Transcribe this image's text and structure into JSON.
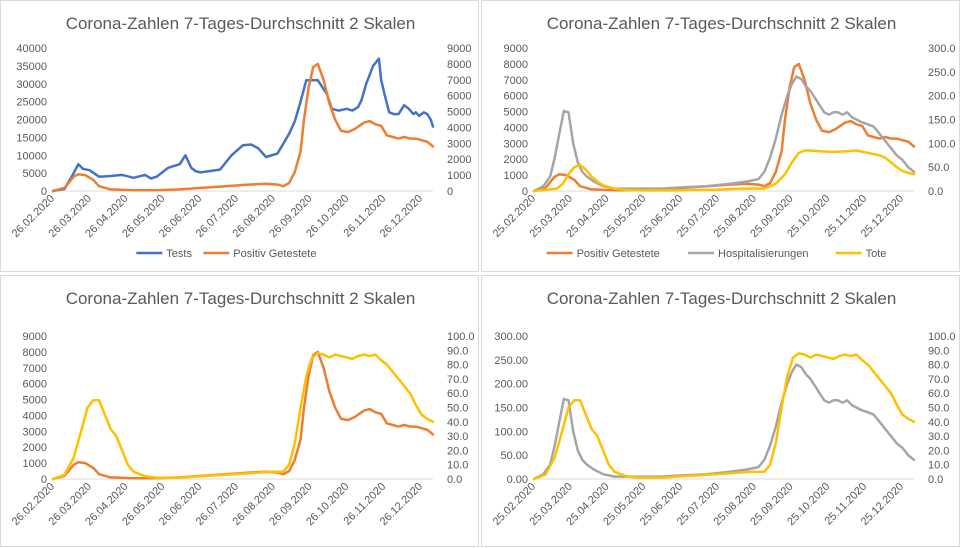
{
  "chart_data": [
    {
      "type": "line",
      "title": "Corona-Zahlen 7-Tages-Durchschnitt 2 Skalen",
      "x_ticks": [
        "26.02.2020",
        "26.03.2020",
        "26.04.2020",
        "26.05.2020",
        "26.06.2020",
        "26.07.2020",
        "26.08.2020",
        "26.09.2020",
        "26.10.2020",
        "26.11.2020",
        "26.12.2020"
      ],
      "x_range": [
        0,
        330
      ],
      "y_left_ticks": [
        "0",
        "5000",
        "10000",
        "15000",
        "20000",
        "25000",
        "30000",
        "35000",
        "40000"
      ],
      "y_left_range": [
        0,
        40000
      ],
      "y_right_ticks": [
        "0",
        "1000",
        "2000",
        "3000",
        "4000",
        "5000",
        "6000",
        "7000",
        "8000",
        "9000"
      ],
      "y_right_range": [
        0,
        9000
      ],
      "legend_position": "bottom",
      "series": [
        {
          "name": "Tests",
          "axis": "left",
          "color": "#4472c4",
          "x": [
            0,
            10,
            18,
            22,
            26,
            32,
            40,
            50,
            60,
            70,
            80,
            85,
            90,
            100,
            110,
            115,
            120,
            124,
            128,
            135,
            145,
            155,
            165,
            172,
            178,
            185,
            195,
            205,
            210,
            215,
            220,
            230,
            238,
            242,
            248,
            255,
            260,
            265,
            268,
            272,
            278,
            283,
            285,
            288,
            292,
            296,
            300,
            305,
            309,
            313,
            315,
            318,
            322,
            325,
            328,
            330
          ],
          "values": [
            0,
            600,
            5000,
            7500,
            6200,
            5800,
            4000,
            4200,
            4500,
            3700,
            4500,
            3500,
            4000,
            6500,
            7500,
            10000,
            6500,
            5500,
            5200,
            5500,
            6000,
            10000,
            12800,
            13000,
            12000,
            9500,
            10500,
            16000,
            19500,
            25000,
            31000,
            31000,
            27000,
            23000,
            22500,
            23000,
            22500,
            23500,
            25500,
            30000,
            35000,
            37000,
            31000,
            27000,
            22000,
            21500,
            21500,
            24000,
            23000,
            21500,
            22000,
            21000,
            22000,
            21500,
            20000,
            18000
          ]
        },
        {
          "name": "Positiv Getestete",
          "axis": "right",
          "color": "#ed7d31",
          "x": [
            0,
            10,
            18,
            22,
            28,
            35,
            40,
            50,
            70,
            90,
            110,
            130,
            150,
            170,
            185,
            195,
            200,
            205,
            210,
            215,
            218,
            222,
            226,
            230,
            235,
            240,
            245,
            250,
            256,
            262,
            270,
            275,
            280,
            285,
            290,
            295,
            300,
            305,
            310,
            315,
            320,
            325,
            330
          ],
          "values": [
            0,
            200,
            900,
            1050,
            1000,
            700,
            300,
            100,
            50,
            50,
            100,
            200,
            300,
            400,
            450,
            400,
            300,
            500,
            1200,
            2500,
            4500,
            6500,
            7800,
            8000,
            7000,
            5500,
            4500,
            3800,
            3700,
            3900,
            4300,
            4400,
            4200,
            4100,
            3500,
            3400,
            3300,
            3400,
            3300,
            3300,
            3200,
            3100,
            2800
          ]
        }
      ]
    },
    {
      "type": "line",
      "title": "Corona-Zahlen 7-Tages-Durchschnitt 2 Skalen",
      "x_ticks": [
        "25.02.2020",
        "25.03.2020",
        "25.04.2020",
        "25.05.2020",
        "25.06.2020",
        "25.07.2020",
        "25.08.2020",
        "25.09.2020",
        "25.10.2020",
        "25.11.2020",
        "25.12.2020"
      ],
      "x_range": [
        0,
        330
      ],
      "y_left_ticks": [
        "0",
        "1000",
        "2000",
        "3000",
        "4000",
        "5000",
        "6000",
        "7000",
        "8000",
        "9000"
      ],
      "y_left_range": [
        0,
        9000
      ],
      "y_right_ticks": [
        "0.0",
        "50.0",
        "100.0",
        "150.0",
        "200.0",
        "250.0",
        "300.0"
      ],
      "y_right_range": [
        0,
        300
      ],
      "legend_position": "bottom",
      "series": [
        {
          "name": "Positiv Getestete",
          "axis": "left",
          "color": "#ed7d31",
          "x": [
            0,
            10,
            18,
            22,
            28,
            35,
            40,
            50,
            70,
            90,
            110,
            130,
            150,
            170,
            185,
            195,
            200,
            205,
            210,
            215,
            218,
            222,
            226,
            230,
            235,
            240,
            245,
            250,
            256,
            262,
            270,
            275,
            280,
            285,
            290,
            295,
            300,
            305,
            310,
            315,
            320,
            325,
            330
          ],
          "values": [
            0,
            200,
            900,
            1050,
            1000,
            700,
            300,
            100,
            50,
            50,
            100,
            200,
            300,
            400,
            450,
            400,
            300,
            500,
            1200,
            2500,
            4500,
            6500,
            7800,
            8000,
            7000,
            5500,
            4500,
            3800,
            3700,
            3900,
            4300,
            4400,
            4200,
            4100,
            3500,
            3400,
            3300,
            3400,
            3300,
            3300,
            3200,
            3100,
            2800
          ]
        },
        {
          "name": "Hospitalisierungen",
          "axis": "right",
          "color": "#a5a5a5",
          "x": [
            0,
            8,
            14,
            18,
            22,
            26,
            30,
            34,
            38,
            42,
            46,
            52,
            60,
            70,
            90,
            110,
            130,
            150,
            170,
            185,
            195,
            200,
            205,
            210,
            215,
            220,
            224,
            228,
            232,
            236,
            240,
            244,
            248,
            252,
            256,
            260,
            264,
            268,
            272,
            276,
            280,
            284,
            290,
            295,
            300,
            305,
            310,
            315,
            320,
            325,
            330
          ],
          "values": [
            0,
            10,
            30,
            70,
            120,
            168,
            165,
            100,
            60,
            40,
            30,
            20,
            10,
            5,
            5,
            5,
            8,
            10,
            15,
            20,
            25,
            40,
            70,
            110,
            160,
            200,
            225,
            240,
            235,
            220,
            210,
            195,
            180,
            165,
            160,
            165,
            165,
            160,
            165,
            155,
            150,
            145,
            140,
            135,
            120,
            105,
            90,
            75,
            65,
            50,
            40
          ]
        },
        {
          "name": "Tote",
          "axis": "right",
          "color": "#ffc000",
          "x": [
            0,
            20,
            25,
            30,
            35,
            40,
            45,
            50,
            55,
            60,
            70,
            80,
            100,
            120,
            140,
            160,
            180,
            200,
            210,
            218,
            224,
            230,
            235,
            240,
            250,
            260,
            270,
            280,
            290,
            300,
            305,
            310,
            315,
            320,
            325,
            330
          ],
          "values": [
            0,
            5,
            15,
            35,
            50,
            55,
            45,
            30,
            20,
            12,
            5,
            2,
            1,
            1,
            2,
            3,
            5,
            5,
            15,
            35,
            60,
            80,
            85,
            85,
            83,
            82,
            83,
            85,
            80,
            75,
            70,
            60,
            50,
            42,
            38,
            35
          ]
        }
      ]
    },
    {
      "type": "line",
      "title": "Corona-Zahlen 7-Tages-Durchschnitt 2 Skalen",
      "x_ticks": [
        "26.02.2020",
        "26.03.2020",
        "26.04.2020",
        "26.05.2020",
        "26.06.2020",
        "26.07.2020",
        "26.08.2020",
        "26.09.2020",
        "26.10.2020",
        "26.11.2020",
        "26.12.2020"
      ],
      "x_range": [
        0,
        330
      ],
      "y_left_ticks": [
        "0",
        "1000",
        "2000",
        "3000",
        "4000",
        "5000",
        "6000",
        "7000",
        "8000",
        "9000"
      ],
      "y_left_range": [
        0,
        9000
      ],
      "y_right_ticks": [
        "0.0",
        "10.0",
        "20.0",
        "30.0",
        "40.0",
        "50.0",
        "60.0",
        "70.0",
        "80.0",
        "90.0",
        "100.0"
      ],
      "y_right_range": [
        0,
        100
      ],
      "legend_position": "none",
      "series": [
        {
          "name": "",
          "axis": "left",
          "color": "#ed7d31",
          "x": [
            0,
            10,
            18,
            22,
            28,
            35,
            40,
            50,
            70,
            90,
            110,
            130,
            150,
            170,
            185,
            195,
            200,
            205,
            210,
            215,
            218,
            222,
            226,
            230,
            235,
            240,
            245,
            250,
            256,
            262,
            270,
            275,
            280,
            285,
            290,
            295,
            300,
            305,
            310,
            315,
            320,
            325,
            330
          ],
          "values": [
            0,
            200,
            900,
            1050,
            1000,
            700,
            300,
            100,
            50,
            50,
            100,
            200,
            300,
            400,
            450,
            400,
            300,
            500,
            1200,
            2500,
            4500,
            6500,
            7800,
            8000,
            7000,
            5500,
            4500,
            3800,
            3700,
            3900,
            4300,
            4400,
            4200,
            4100,
            3500,
            3400,
            3300,
            3400,
            3300,
            3300,
            3200,
            3100,
            2800
          ]
        },
        {
          "name": "",
          "axis": "right",
          "color": "#ffc000",
          "x": [
            0,
            10,
            18,
            25,
            30,
            35,
            40,
            45,
            50,
            55,
            60,
            65,
            70,
            80,
            90,
            100,
            110,
            130,
            150,
            170,
            190,
            200,
            205,
            210,
            215,
            220,
            225,
            230,
            235,
            240,
            245,
            250,
            255,
            260,
            265,
            270,
            275,
            280,
            285,
            290,
            295,
            300,
            305,
            310,
            315,
            320,
            325,
            330
          ],
          "values": [
            0,
            3,
            15,
            35,
            50,
            55,
            55,
            45,
            35,
            30,
            20,
            10,
            5,
            2,
            1,
            1,
            1,
            2,
            3,
            4,
            5,
            5,
            10,
            25,
            50,
            72,
            85,
            88,
            87,
            85,
            87,
            86,
            85,
            84,
            86,
            87,
            86,
            87,
            83,
            80,
            75,
            70,
            65,
            60,
            52,
            45,
            42,
            40
          ]
        }
      ]
    },
    {
      "type": "line",
      "title": "Corona-Zahlen 7-Tages-Durchschnitt 2 Skalen",
      "x_ticks": [
        "25.02.2020",
        "25.03.2020",
        "25.04.2020",
        "25.05.2020",
        "25.06.2020",
        "25.07.2020",
        "25.08.2020",
        "25.09.2020",
        "25.10.2020",
        "25.11.2020",
        "25.12.2020"
      ],
      "x_range": [
        0,
        330
      ],
      "y_left_ticks": [
        "0.00",
        "50.00",
        "100.00",
        "150.00",
        "200.00",
        "250.00",
        "300.00"
      ],
      "y_left_range": [
        0,
        300
      ],
      "y_right_ticks": [
        "0.0",
        "10.0",
        "20.0",
        "30.0",
        "40.0",
        "50.0",
        "60.0",
        "70.0",
        "80.0",
        "90.0",
        "100.0"
      ],
      "y_right_range": [
        0,
        100
      ],
      "legend_position": "none",
      "series": [
        {
          "name": "",
          "axis": "left",
          "color": "#a5a5a5",
          "x": [
            0,
            8,
            14,
            18,
            22,
            26,
            30,
            34,
            38,
            42,
            46,
            52,
            60,
            70,
            90,
            110,
            130,
            150,
            170,
            185,
            195,
            200,
            205,
            210,
            215,
            220,
            224,
            228,
            232,
            236,
            240,
            244,
            248,
            252,
            256,
            260,
            264,
            268,
            272,
            276,
            280,
            284,
            290,
            295,
            300,
            305,
            310,
            315,
            320,
            325,
            330
          ],
          "values": [
            0,
            10,
            30,
            70,
            120,
            168,
            165,
            100,
            60,
            40,
            30,
            20,
            10,
            5,
            5,
            5,
            8,
            10,
            15,
            20,
            25,
            40,
            70,
            110,
            160,
            200,
            225,
            240,
            235,
            220,
            210,
            195,
            180,
            165,
            160,
            165,
            165,
            160,
            165,
            155,
            150,
            145,
            140,
            135,
            120,
            105,
            90,
            75,
            65,
            50,
            40
          ]
        },
        {
          "name": "",
          "axis": "right",
          "color": "#ffc000",
          "x": [
            0,
            10,
            18,
            25,
            30,
            35,
            40,
            45,
            50,
            55,
            60,
            65,
            70,
            80,
            90,
            100,
            110,
            130,
            150,
            170,
            190,
            200,
            205,
            210,
            215,
            220,
            225,
            230,
            235,
            240,
            245,
            250,
            255,
            260,
            265,
            270,
            275,
            280,
            285,
            290,
            295,
            300,
            305,
            310,
            315,
            320,
            325,
            330
          ],
          "values": [
            0,
            3,
            15,
            35,
            50,
            55,
            55,
            45,
            35,
            30,
            20,
            10,
            5,
            2,
            1,
            1,
            1,
            2,
            3,
            4,
            5,
            5,
            10,
            25,
            50,
            72,
            85,
            88,
            87,
            85,
            87,
            86,
            85,
            84,
            86,
            87,
            86,
            87,
            83,
            80,
            75,
            70,
            65,
            60,
            52,
            45,
            42,
            40
          ]
        }
      ]
    }
  ]
}
